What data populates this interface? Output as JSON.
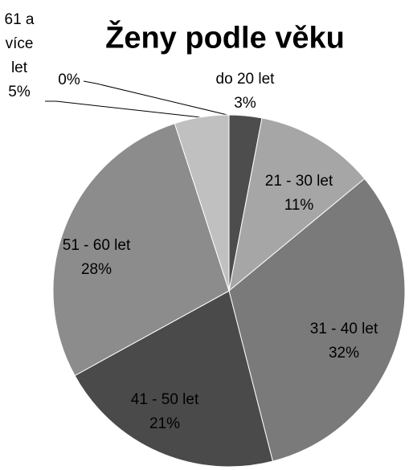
{
  "chart_data": {
    "type": "pie",
    "title": "Ženy podle věku",
    "categories": [
      "do 20 let",
      "21 - 30 let",
      "31 - 40 let",
      "41 - 50 let",
      "51 - 60 let",
      null,
      "61 a více let"
    ],
    "values": [
      3,
      11,
      32,
      21,
      28,
      0,
      5
    ],
    "value_labels": [
      "3%",
      "11%",
      "32%",
      "21%",
      "28%",
      "0%",
      "5%"
    ],
    "colors": [
      "#4d4d4d",
      "#a6a6a6",
      "#7a7a7a",
      "#4a4a4a",
      "#8c8c8c",
      "#6e6e6e",
      "#c0c0c0"
    ]
  }
}
